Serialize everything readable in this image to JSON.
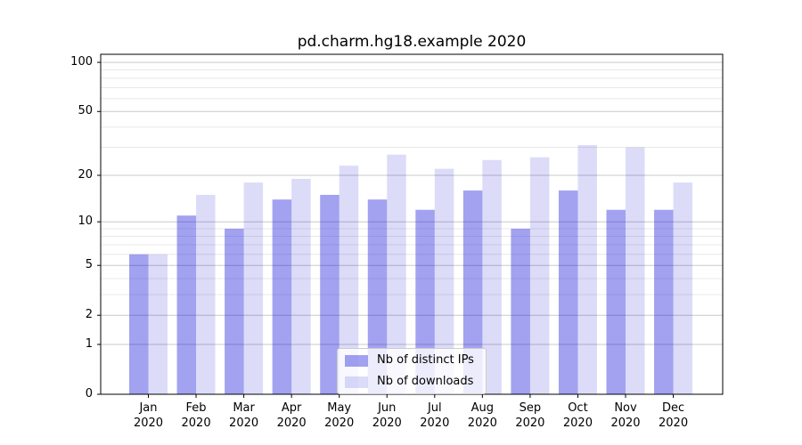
{
  "title": "pd.charm.hg18.example 2020",
  "colors": {
    "background": "#ffffff",
    "axis": "#000000",
    "text": "#000000",
    "grid_major": "#c9c9c9",
    "grid_minor": "#e8e8e8",
    "legend_border": "#cccccc"
  },
  "chart_data": {
    "type": "bar",
    "title": "pd.charm.hg18.example 2020",
    "scale": "symlog (log(v+1))",
    "grid": true,
    "categories": [
      "Jan",
      "Feb",
      "Mar",
      "Apr",
      "May",
      "Jun",
      "Jul",
      "Aug",
      "Sep",
      "Oct",
      "Nov",
      "Dec"
    ],
    "x_sublabel": "2020",
    "series": [
      {
        "name": "Nb of distinct IPs",
        "color": "#0a0ad7",
        "opacity": 0.38,
        "rendered_color": "#a2a2f0",
        "values": [
          6,
          11,
          9,
          14,
          15,
          14,
          12,
          16,
          9,
          16,
          12,
          12
        ]
      },
      {
        "name": "Nb of downloads",
        "color": "#0a0ad7",
        "opacity": 0.14,
        "rendered_color": "#dcdcf8",
        "values": [
          6,
          15,
          18,
          19,
          23,
          27,
          22,
          25,
          26,
          31,
          30,
          18
        ]
      }
    ],
    "y_ticks": [
      100,
      50,
      20,
      10,
      5,
      2,
      1,
      0
    ],
    "y_gridlines_major": [
      1,
      2,
      5,
      10,
      20,
      50,
      100
    ],
    "y_gridlines_minor": [
      3,
      4,
      6,
      7,
      8,
      9,
      30,
      40,
      60,
      70,
      80,
      90
    ],
    "ylim": [
      0,
      112
    ],
    "legend_position": "lower center"
  }
}
